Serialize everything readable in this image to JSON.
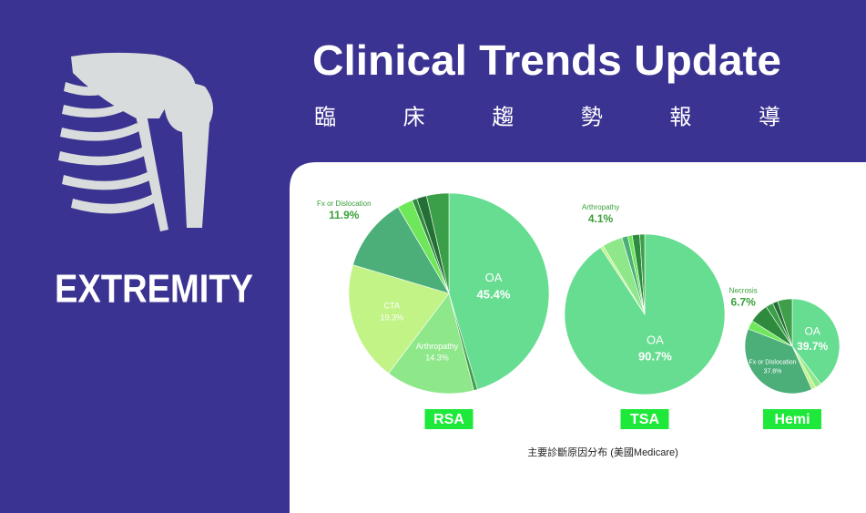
{
  "header": {
    "title": "Clinical Trends Update",
    "subtitle": "臨 床 趨 勢 報 導",
    "section": "EXTREMITY"
  },
  "footnote": "主要診斷原因分布 (美國Medicare)",
  "chart_data": [
    {
      "type": "pie",
      "title": "RSA",
      "categories": [
        "OA",
        null,
        "Arthropathy",
        "CTA",
        "Fx or Dislocation",
        null,
        null,
        null,
        null
      ],
      "values": [
        45.4,
        0.6,
        14.3,
        19.3,
        11.9,
        2.5,
        0.8,
        1.6,
        3.6
      ],
      "value_labels": [
        "45.4%",
        null,
        "14.3%",
        "19.3%",
        "11.9%",
        null,
        null,
        null,
        null
      ],
      "colors": [
        "#66dd91",
        "#3f9e4a",
        "#8ee88a",
        "#c2f387",
        "#4caf7a",
        "#6ee85a",
        "#2e8b3e",
        "#246f33",
        "#3b9e48"
      ]
    },
    {
      "type": "pie",
      "title": "TSA",
      "categories": [
        "OA",
        null,
        "Arthropathy",
        null,
        null,
        null,
        null
      ],
      "values": [
        90.7,
        0.6,
        4.1,
        1.2,
        0.9,
        1.5,
        1.0
      ],
      "value_labels": [
        "90.7%",
        null,
        "4.1%",
        null,
        null,
        null,
        null
      ],
      "colors": [
        "#66dd91",
        "#c2f387",
        "#8ee88a",
        "#4caf7a",
        "#6ee85a",
        "#2e8b3e",
        "#3b9e48"
      ]
    },
    {
      "type": "pie",
      "title": "Hemi",
      "categories": [
        "OA",
        null,
        null,
        "Fx or Dislocation",
        null,
        "Necrosis",
        null,
        null,
        null
      ],
      "values": [
        39.7,
        2.0,
        1.5,
        37.8,
        3.0,
        6.7,
        2.5,
        1.8,
        5.0
      ],
      "value_labels": [
        "39.7%",
        null,
        null,
        "37.8%",
        null,
        "6.7%",
        null,
        null,
        null
      ],
      "colors": [
        "#66dd91",
        "#8ee88a",
        "#c2f387",
        "#4caf7a",
        "#6ee85a",
        "#2e8b3e",
        "#3b9e48",
        "#246f33",
        "#3f9e4a"
      ]
    }
  ]
}
